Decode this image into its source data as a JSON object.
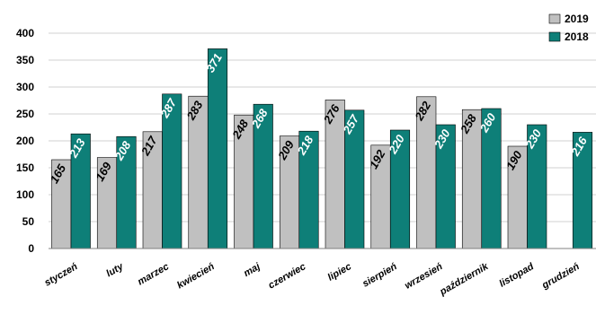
{
  "chart_data": {
    "type": "bar",
    "title": "",
    "xlabel": "",
    "ylabel": "",
    "ylim": [
      0,
      400
    ],
    "yticks": [
      0,
      50,
      100,
      150,
      200,
      250,
      300,
      350,
      400
    ],
    "grid": true,
    "legend_position": "top-right",
    "categories": [
      "styczeń",
      "luty",
      "marzec",
      "kwiecień",
      "maj",
      "czerwiec",
      "lipiec",
      "sierpień",
      "wrzesień",
      "październik",
      "listopad",
      "grudzień"
    ],
    "series": [
      {
        "name": "2019",
        "color": "#c0c0c0",
        "label_color": "#000000",
        "values": [
          165,
          169,
          217,
          283,
          248,
          209,
          276,
          192,
          282,
          258,
          190,
          null
        ]
      },
      {
        "name": "2018",
        "color": "#0e7f78",
        "label_color": "#ffffff",
        "values": [
          213,
          208,
          287,
          371,
          268,
          218,
          257,
          220,
          230,
          260,
          230,
          216
        ]
      }
    ]
  }
}
